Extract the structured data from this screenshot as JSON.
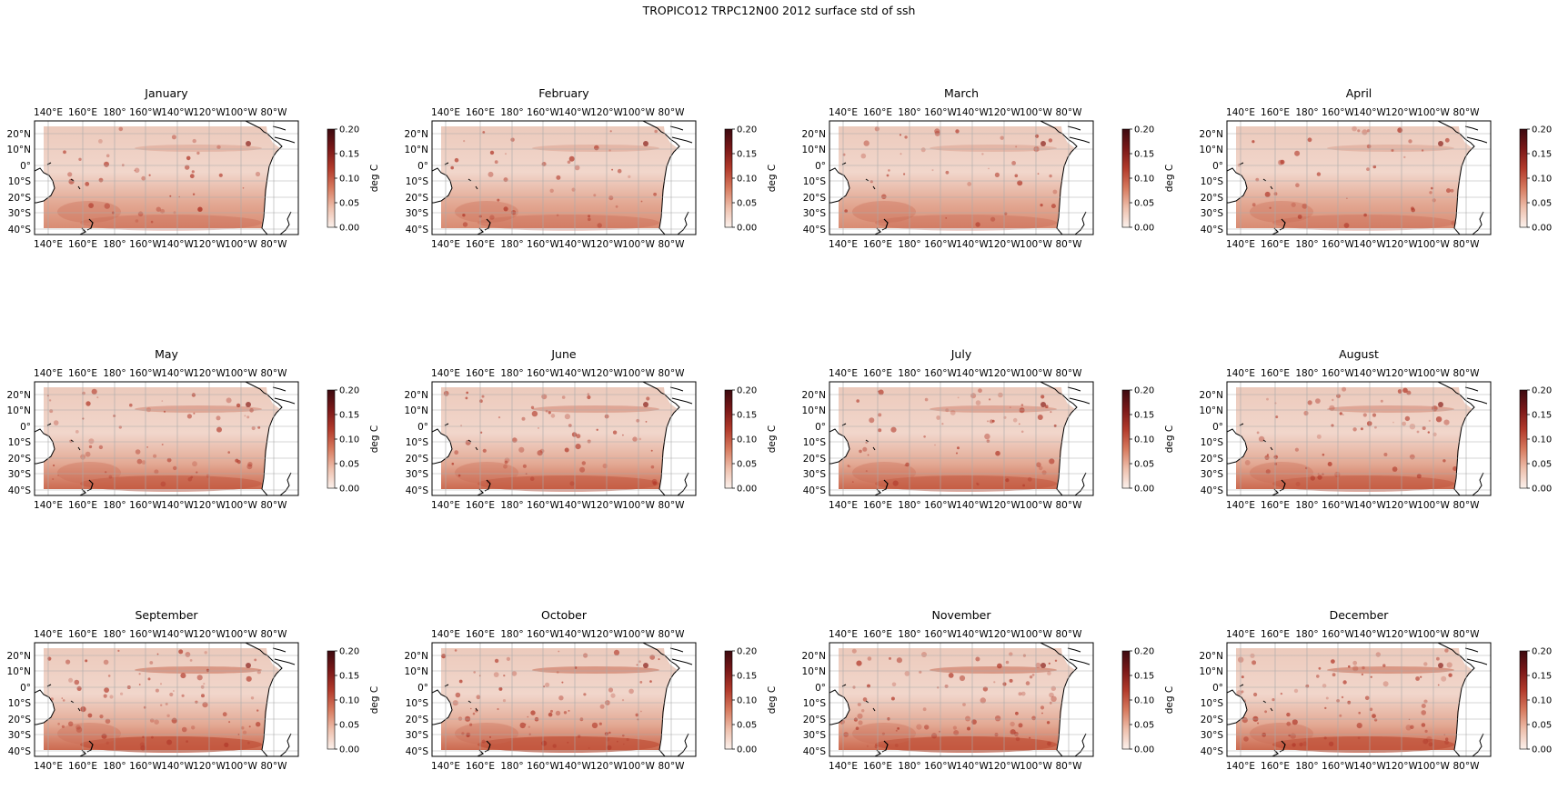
{
  "figure": {
    "title": "TROPICO12 TRPC12N00 2012 surface std of ssh"
  },
  "axes_ticks": {
    "lon": [
      "140°E",
      "160°E",
      "180°",
      "160°W",
      "140°W",
      "120°W",
      "100°W",
      "80°W"
    ],
    "lat": [
      "20°N",
      "10°N",
      "0°",
      "10°S",
      "20°S",
      "30°S",
      "40°S"
    ]
  },
  "colorbar": {
    "label": "deg C",
    "ticks": [
      "0.00",
      "0.05",
      "0.10",
      "0.15",
      "0.20"
    ],
    "range": [
      0.0,
      0.2
    ],
    "colors": [
      "#fbf1ec",
      "#eebfac",
      "#d77a5e",
      "#b23a2b",
      "#7a1818",
      "#3d0a10"
    ]
  },
  "panels": [
    {
      "title": "January"
    },
    {
      "title": "February"
    },
    {
      "title": "March"
    },
    {
      "title": "April"
    },
    {
      "title": "May"
    },
    {
      "title": "June"
    },
    {
      "title": "July"
    },
    {
      "title": "August"
    },
    {
      "title": "September"
    },
    {
      "title": "October"
    },
    {
      "title": "November"
    },
    {
      "title": "December"
    }
  ],
  "colors": {
    "ocean_base": "#eac6b8",
    "grid": "#a9a9a9",
    "land_outline": "#000000"
  }
}
